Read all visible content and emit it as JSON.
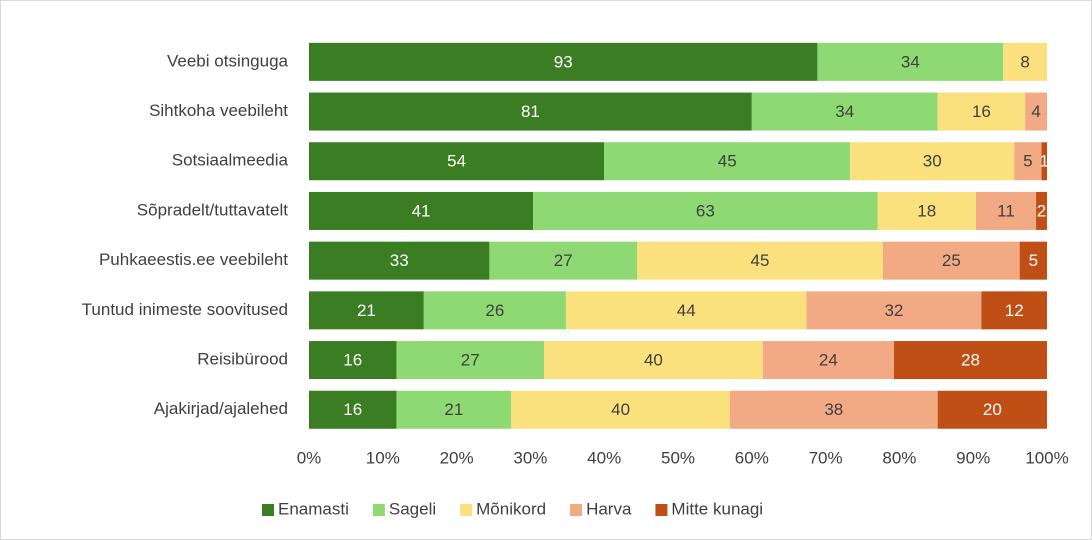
{
  "chart_data": {
    "type": "bar",
    "orientation": "horizontal",
    "stacked": "percent",
    "categories": [
      "Veebi otsinguga",
      "Sihtkoha veebileht",
      "Sotsiaalmeedia",
      "Sõpradelt/tuttavatelt",
      "Puhkaeestis.ee veebileht",
      "Tuntud inimeste soovitused",
      "Reisibürood",
      "Ajakirjad/ajalehed"
    ],
    "series": [
      {
        "name": "Enamasti",
        "color": "#3a7d22",
        "values": [
          93,
          81,
          54,
          41,
          33,
          21,
          16,
          16
        ]
      },
      {
        "name": "Sageli",
        "color": "#8ed973",
        "values": [
          34,
          34,
          45,
          63,
          27,
          26,
          27,
          21
        ]
      },
      {
        "name": "Mõnikord",
        "color": "#fae17d",
        "values": [
          8,
          16,
          30,
          18,
          45,
          44,
          40,
          40
        ]
      },
      {
        "name": "Harva",
        "color": "#f2aa84",
        "values": [
          0,
          4,
          5,
          11,
          25,
          32,
          24,
          38
        ]
      },
      {
        "name": "Mitte kunagi",
        "color": "#c04f15",
        "values": [
          0,
          0,
          1,
          2,
          5,
          12,
          28,
          20
        ]
      }
    ],
    "xlim": [
      0,
      100
    ],
    "xticks": [
      {
        "value": 0,
        "label": "0%"
      },
      {
        "value": 10,
        "label": "10%"
      },
      {
        "value": 20,
        "label": "20%"
      },
      {
        "value": 30,
        "label": "30%"
      },
      {
        "value": 40,
        "label": "40%"
      },
      {
        "value": 50,
        "label": "50%"
      },
      {
        "value": 60,
        "label": "60%"
      },
      {
        "value": 70,
        "label": "70%"
      },
      {
        "value": 80,
        "label": "80%"
      },
      {
        "value": 90,
        "label": "90%"
      },
      {
        "value": 100,
        "label": "100%"
      }
    ],
    "grid": false,
    "legend": "bottom"
  }
}
